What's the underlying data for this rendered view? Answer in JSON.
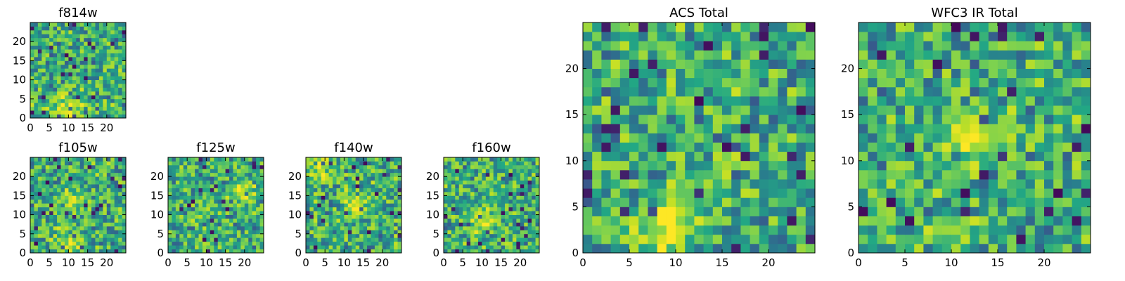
{
  "chart_data": [
    {
      "type": "heatmap",
      "title": "f814w",
      "xticks": [
        "0",
        "5",
        "10",
        "15",
        "20"
      ],
      "yticks": [
        "0",
        "5",
        "10",
        "15",
        "20"
      ],
      "xlim": [
        0,
        25
      ],
      "ylim": [
        0,
        25
      ],
      "colormap": "viridis",
      "seed": 11,
      "hotspots": [
        {
          "x": 9.5,
          "y": 2.5,
          "r": 2.4,
          "amp": 0.35
        }
      ]
    },
    {
      "type": "heatmap",
      "title": "f105w",
      "xticks": [
        "0",
        "5",
        "10",
        "15",
        "20"
      ],
      "yticks": [
        "0",
        "5",
        "10",
        "15",
        "20"
      ],
      "xlim": [
        0,
        25
      ],
      "ylim": [
        0,
        25
      ],
      "colormap": "viridis",
      "seed": 23,
      "hotspots": [
        {
          "x": 10,
          "y": 3,
          "r": 2.5,
          "amp": 0.3
        },
        {
          "x": 11,
          "y": 14,
          "r": 2,
          "amp": 0.25
        }
      ]
    },
    {
      "type": "heatmap",
      "title": "f125w",
      "xticks": [
        "0",
        "5",
        "10",
        "15",
        "20"
      ],
      "yticks": [
        "0",
        "5",
        "10",
        "15",
        "20"
      ],
      "xlim": [
        0,
        25
      ],
      "ylim": [
        0,
        25
      ],
      "colormap": "viridis",
      "seed": 37,
      "hotspots": [
        {
          "x": 20,
          "y": 16,
          "r": 2.4,
          "amp": 0.3
        }
      ]
    },
    {
      "type": "heatmap",
      "title": "f140w",
      "xticks": [
        "0",
        "5",
        "10",
        "15",
        "20"
      ],
      "yticks": [
        "0",
        "5",
        "10",
        "15",
        "20"
      ],
      "xlim": [
        0,
        25
      ],
      "ylim": [
        0,
        25
      ],
      "colormap": "viridis",
      "seed": 41,
      "hotspots": [
        {
          "x": 4,
          "y": 22,
          "r": 2.2,
          "amp": 0.3
        },
        {
          "x": 13,
          "y": 12,
          "r": 2.5,
          "amp": 0.25
        }
      ]
    },
    {
      "type": "heatmap",
      "title": "f160w",
      "xticks": [
        "0",
        "5",
        "10",
        "15",
        "20"
      ],
      "yticks": [
        "0",
        "5",
        "10",
        "15",
        "20"
      ],
      "xlim": [
        0,
        25
      ],
      "ylim": [
        0,
        25
      ],
      "colormap": "viridis",
      "seed": 53,
      "hotspots": [
        {
          "x": 10,
          "y": 8,
          "r": 2.5,
          "amp": 0.3
        }
      ]
    },
    {
      "type": "heatmap",
      "title": "ACS Total",
      "xticks": [
        "0",
        "5",
        "10",
        "15",
        "20"
      ],
      "yticks": [
        "0",
        "5",
        "10",
        "15",
        "20"
      ],
      "xlim": [
        0,
        25
      ],
      "ylim": [
        0,
        25
      ],
      "colormap": "viridis",
      "seed": 67,
      "hotspots": [
        {
          "x": 9.5,
          "y": 3,
          "r": 2.4,
          "amp": 0.35
        }
      ]
    },
    {
      "type": "heatmap",
      "title": "WFC3 IR Total",
      "xticks": [
        "0",
        "5",
        "10",
        "15",
        "20"
      ],
      "yticks": [
        "0",
        "5",
        "10",
        "15",
        "20"
      ],
      "xlim": [
        0,
        25
      ],
      "ylim": [
        0,
        25
      ],
      "colormap": "viridis",
      "seed": 79,
      "hotspots": [
        {
          "x": 12.5,
          "y": 12.5,
          "r": 1.8,
          "amp": 0.4
        },
        {
          "x": 10,
          "y": 2,
          "r": 1.6,
          "amp": 0.25
        }
      ]
    }
  ],
  "colors": {
    "low": "#440154",
    "mid_low": "#2a788e",
    "mid": "#22a884",
    "mid_high": "#7ad151",
    "high": "#fde725"
  }
}
